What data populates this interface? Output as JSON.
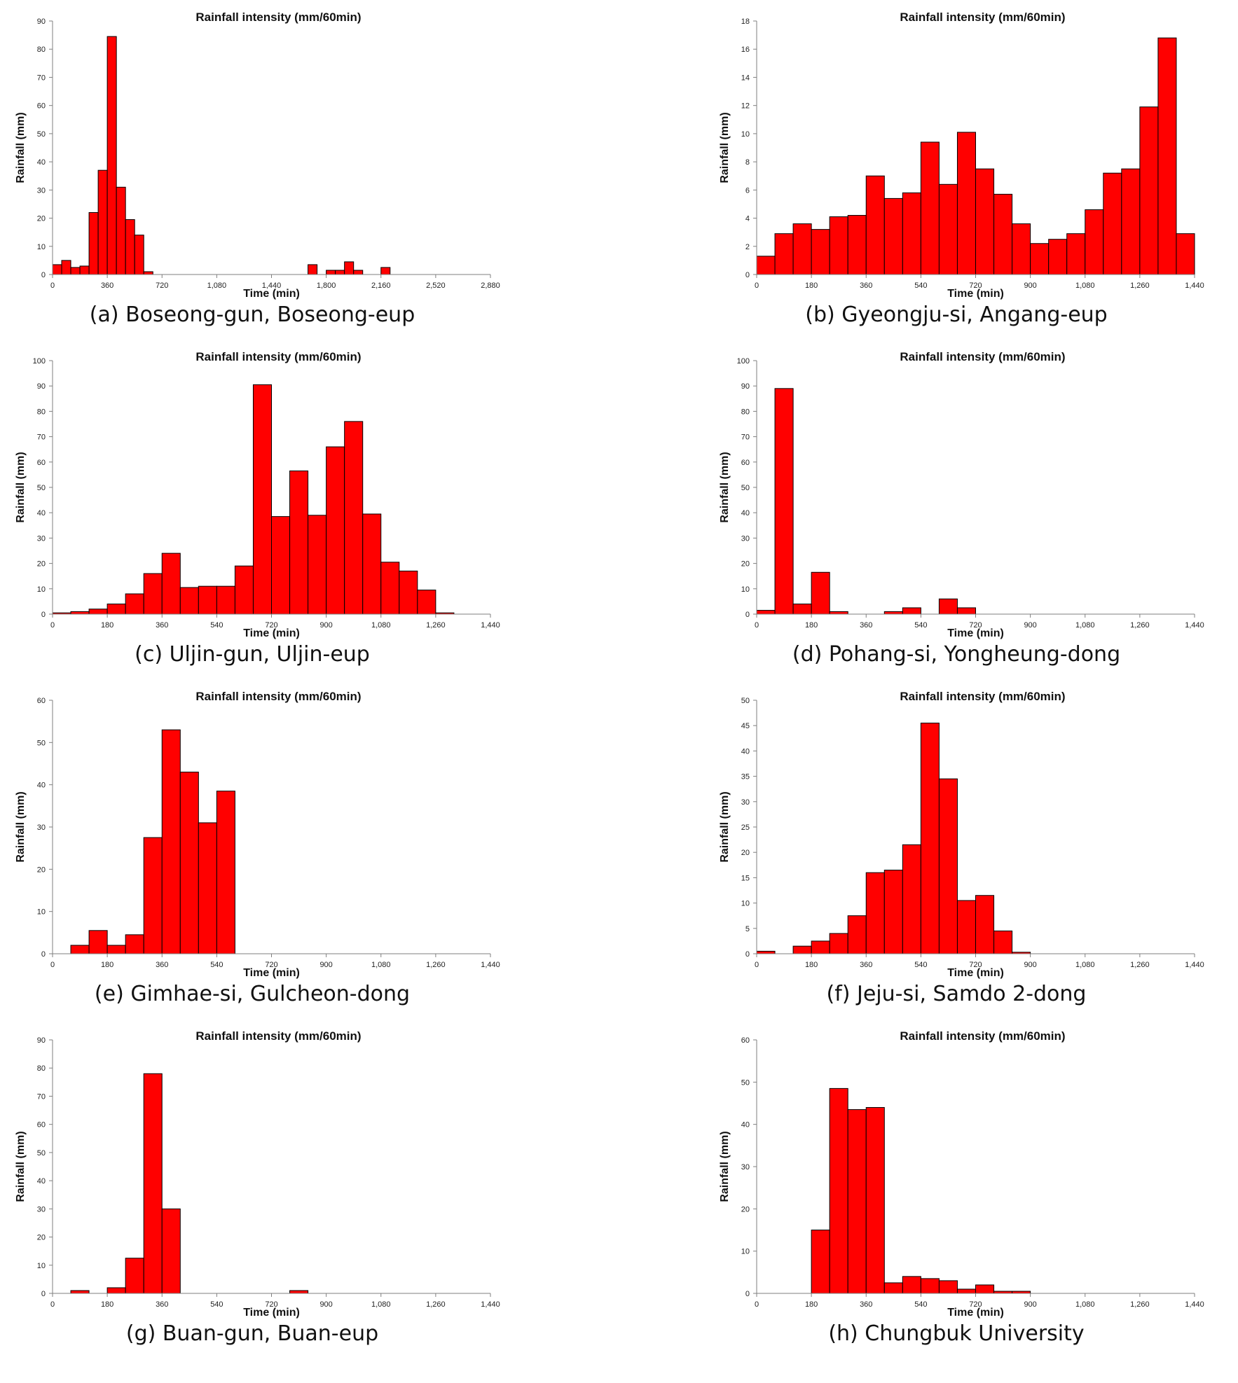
{
  "colors": {
    "bar_fill": "#ff0000",
    "bar_stroke": "#000000",
    "axis": "#7f7f7f"
  },
  "chart_data": [
    {
      "id": "a",
      "type": "bar",
      "caption": "(a) Boseong-gun, Boseong-eup",
      "title": "Rainfall intensity (mm/60min)",
      "xlabel": "Time (min)",
      "ylabel": "Rainfall (mm)",
      "xlim": [
        0,
        2880
      ],
      "ylim": [
        0,
        90
      ],
      "x_ticks": [
        "0",
        "360",
        "720",
        "1,080",
        "1,440",
        "1,800",
        "2,160",
        "2,520",
        "2,880"
      ],
      "y_ticks": [
        "0",
        "10",
        "20",
        "30",
        "40",
        "50",
        "60",
        "70",
        "80",
        "90"
      ],
      "bin_minutes": 60,
      "values": [
        3.5,
        5,
        2.5,
        3,
        22,
        37,
        84.5,
        31,
        19.5,
        14,
        1,
        0,
        0,
        0,
        0,
        0,
        0,
        0,
        0,
        0,
        0,
        0,
        0,
        0,
        0,
        0,
        0,
        0,
        3.5,
        0,
        1.5,
        1.5,
        4.5,
        1.5,
        0,
        0,
        2.5,
        0
      ]
    },
    {
      "id": "b",
      "type": "bar",
      "caption": "(b) Gyeongju-si, Angang-eup",
      "title": "Rainfall intensity (mm/60min)",
      "xlabel": "Time (min)",
      "ylabel": "Rainfall (mm)",
      "xlim": [
        0,
        1440
      ],
      "ylim": [
        0,
        18
      ],
      "x_ticks": [
        "0",
        "180",
        "360",
        "540",
        "720",
        "900",
        "1,080",
        "1,260",
        "1,440"
      ],
      "y_ticks": [
        "0",
        "2",
        "4",
        "6",
        "8",
        "10",
        "12",
        "14",
        "16",
        "18"
      ],
      "bin_minutes": 60,
      "values": [
        1.3,
        2.9,
        3.6,
        3.2,
        4.1,
        4.2,
        7,
        5.4,
        5.8,
        9.4,
        6.4,
        10.1,
        7.5,
        5.7,
        3.6,
        2.2,
        2.5,
        2.9,
        4.6,
        7.2,
        7.5,
        11.9,
        16.8,
        2.9
      ]
    },
    {
      "id": "c",
      "type": "bar",
      "caption": "(c) Uljin-gun, Uljin-eup",
      "title": "Rainfall intensity (mm/60min)",
      "xlabel": "Time (min)",
      "ylabel": "Rainfall (mm)",
      "xlim": [
        0,
        1440
      ],
      "ylim": [
        0,
        100
      ],
      "x_ticks": [
        "0",
        "180",
        "360",
        "540",
        "720",
        "900",
        "1,080",
        "1,260",
        "1,440"
      ],
      "y_ticks": [
        "0",
        "10",
        "20",
        "30",
        "40",
        "50",
        "60",
        "70",
        "80",
        "90",
        "100"
      ],
      "bin_minutes": 60,
      "values": [
        0.5,
        1,
        2,
        4,
        8,
        16,
        24,
        10.5,
        11,
        11,
        19,
        90.5,
        38.5,
        56.5,
        39,
        66,
        76,
        39.5,
        20.5,
        17,
        9.5,
        0.5
      ]
    },
    {
      "id": "d",
      "type": "bar",
      "caption": "(d) Pohang-si, Yongheung-dong",
      "title": "Rainfall intensity (mm/60min)",
      "xlabel": "Time (min)",
      "ylabel": "Rainfall (mm)",
      "xlim": [
        0,
        1440
      ],
      "ylim": [
        0,
        100
      ],
      "x_ticks": [
        "0",
        "180",
        "360",
        "540",
        "720",
        "900",
        "1,080",
        "1,260",
        "1,440"
      ],
      "y_ticks": [
        "0",
        "10",
        "20",
        "30",
        "40",
        "50",
        "60",
        "70",
        "80",
        "90",
        "100"
      ],
      "bin_minutes": 60,
      "values": [
        1.5,
        89,
        4,
        16.5,
        1,
        0,
        0,
        1,
        2.5,
        0,
        6,
        2.5
      ]
    },
    {
      "id": "e",
      "type": "bar",
      "caption": "(e) Gimhae-si, Gulcheon-dong",
      "title": "Rainfall intensity (mm/60min)",
      "xlabel": "Time (min)",
      "ylabel": "Rainfall (mm)",
      "xlim": [
        0,
        1440
      ],
      "ylim": [
        0,
        60
      ],
      "x_ticks": [
        "0",
        "180",
        "360",
        "540",
        "720",
        "900",
        "1,080",
        "1,260",
        "1,440"
      ],
      "y_ticks": [
        "0",
        "10",
        "20",
        "30",
        "40",
        "50",
        "60"
      ],
      "bin_minutes": 60,
      "values": [
        0,
        2,
        5.5,
        2,
        4.5,
        27.5,
        53,
        43,
        31,
        38.5
      ]
    },
    {
      "id": "f",
      "type": "bar",
      "caption": "(f) Jeju-si, Samdo 2-dong",
      "title": "Rainfall intensity (mm/60min)",
      "xlabel": "Time (min)",
      "ylabel": "Rainfall (mm)",
      "xlim": [
        0,
        1440
      ],
      "ylim": [
        0,
        50
      ],
      "x_ticks": [
        "0",
        "180",
        "360",
        "540",
        "720",
        "900",
        "1,080",
        "1,260",
        "1,440"
      ],
      "y_ticks": [
        "0",
        "5",
        "10",
        "15",
        "20",
        "25",
        "30",
        "35",
        "40",
        "45",
        "50"
      ],
      "bin_minutes": 60,
      "values": [
        0.5,
        0,
        1.5,
        2.5,
        4,
        7.5,
        16,
        16.5,
        21.5,
        45.5,
        34.5,
        10.5,
        11.5,
        4.5,
        0.3
      ]
    },
    {
      "id": "g",
      "type": "bar",
      "caption": "(g) Buan-gun, Buan-eup",
      "title": "Rainfall intensity (mm/60min)",
      "xlabel": "Time (min)",
      "ylabel": "Rainfall (mm)",
      "xlim": [
        0,
        1440
      ],
      "ylim": [
        0,
        90
      ],
      "x_ticks": [
        "0",
        "180",
        "360",
        "540",
        "720",
        "900",
        "1,080",
        "1,260",
        "1,440"
      ],
      "y_ticks": [
        "0",
        "10",
        "20",
        "30",
        "40",
        "50",
        "60",
        "70",
        "80",
        "90"
      ],
      "bin_minutes": 60,
      "values": [
        0,
        1,
        0,
        2,
        12.5,
        78,
        30,
        0,
        0,
        0,
        0,
        0,
        0,
        1
      ]
    },
    {
      "id": "h",
      "type": "bar",
      "caption": "(h) Chungbuk University",
      "title": "Rainfall intensity (mm/60min)",
      "xlabel": "Time (min)",
      "ylabel": "Rainfall (mm)",
      "xlim": [
        0,
        1440
      ],
      "ylim": [
        0,
        60
      ],
      "x_ticks": [
        "0",
        "180",
        "360",
        "540",
        "720",
        "900",
        "1,080",
        "1,260",
        "1,440"
      ],
      "y_ticks": [
        "0",
        "10",
        "20",
        "30",
        "40",
        "50",
        "60"
      ],
      "bin_minutes": 60,
      "values": [
        0,
        0,
        0,
        15,
        48.5,
        43.5,
        44,
        2.5,
        4,
        3.5,
        3,
        1,
        2,
        0.5,
        0.5
      ]
    }
  ]
}
